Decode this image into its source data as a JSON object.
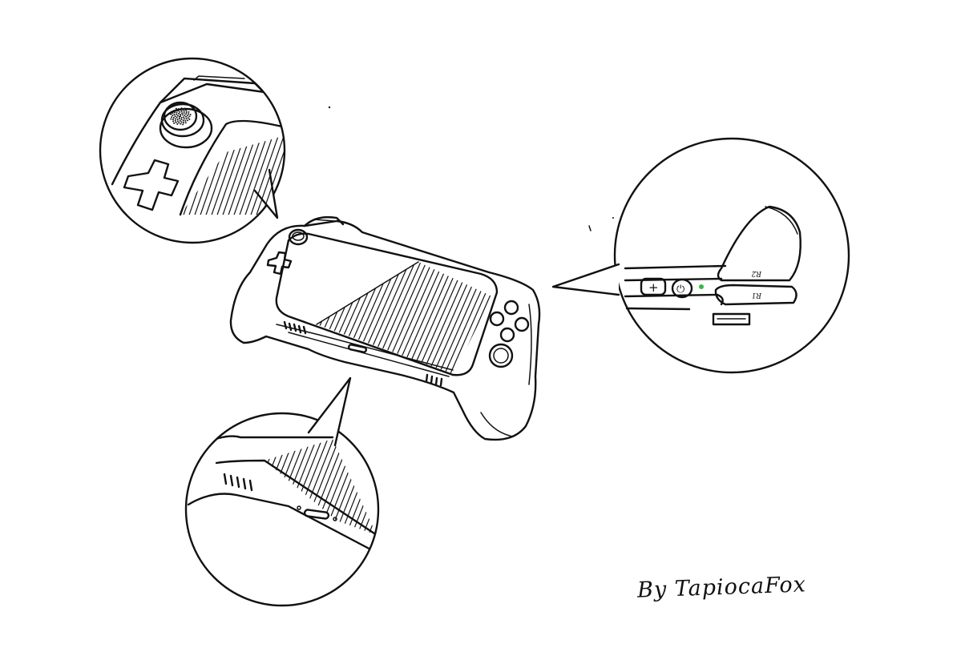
{
  "signature": "By TapiocaFox",
  "callout_right": {
    "r2_label": "R2",
    "r1_label": "R1",
    "plus_glyph": "+",
    "power_glyph": "⏻",
    "led_color": "#3ab54a"
  },
  "ink_color": "#111111",
  "background": "#ffffff"
}
